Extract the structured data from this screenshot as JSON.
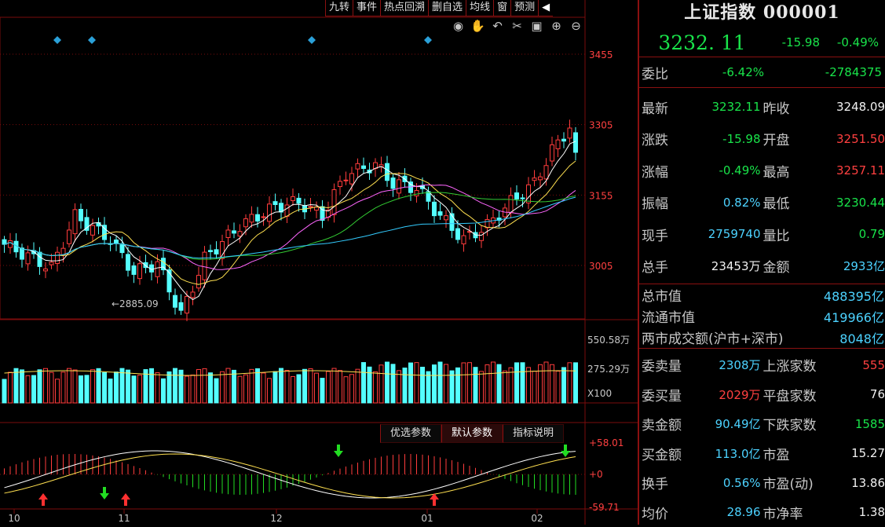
{
  "toolbar": [
    "九转",
    "事件",
    "热点回溯",
    "删自选",
    "均线",
    "窗",
    "预测"
  ],
  "toolbar_icons": [
    "eye-icon",
    "hand-icon",
    "undo-icon",
    "scissors-icon",
    "lock-icon",
    "zoom-in-icon",
    "zoom-out-icon"
  ],
  "indicator_tabs": [
    "优选参数",
    "默认参数",
    "指标说明"
  ],
  "price_axis": {
    "labels": [
      "3455",
      "3305",
      "3155",
      "3005"
    ],
    "values": [
      3455,
      3305,
      3155,
      3005
    ]
  },
  "low_marker": "2885.09",
  "volume_axis": {
    "labels": [
      "550.58万",
      "275.29万",
      "X100"
    ]
  },
  "macd_axis": {
    "labels": [
      "+58.01",
      "+0",
      "-59.71"
    ]
  },
  "months": [
    "10",
    "11",
    "12",
    "01",
    "02"
  ],
  "quote": {
    "title": "上证指数 000001",
    "price": "3232. 11",
    "change": "-15.98",
    "change_pct": "-0.49%",
    "weibi": {
      "label": "委比",
      "pct": "-6.42%",
      "value": "-2784375"
    },
    "rows": [
      {
        "l1": "最新",
        "v1": "3232.11",
        "c1": "g",
        "l2": "昨收",
        "v2": "3248.09",
        "c2": "w"
      },
      {
        "l1": "涨跌",
        "v1": "-15.98",
        "c1": "g",
        "l2": "开盘",
        "v2": "3251.50",
        "c2": "r"
      },
      {
        "l1": "涨幅",
        "v1": "-0.49%",
        "c1": "g",
        "l2": "最高",
        "v2": "3257.11",
        "c2": "r"
      },
      {
        "l1": "振幅",
        "v1": "0.82%",
        "c1": "c",
        "l2": "最低",
        "v2": "3230.44",
        "c2": "g"
      },
      {
        "l1": "现手",
        "v1": "2759740",
        "c1": "c",
        "l2": "量比",
        "v2": "0.79",
        "c2": "g"
      },
      {
        "l1": "总手",
        "v1": "23453万",
        "c1": "w",
        "l2": "金额",
        "v2": "2933亿",
        "c2": "c"
      }
    ],
    "market": [
      {
        "l": "总市值",
        "v": "488395亿"
      },
      {
        "l": "流通市值",
        "v": "419966亿"
      },
      {
        "l": "两市成交额(沪市+深市)",
        "v": "8048亿"
      }
    ],
    "rows2": [
      {
        "l1": "委卖量",
        "v1": "2308万",
        "c1": "c",
        "l2": "上涨家数",
        "v2": "555",
        "c2": "r"
      },
      {
        "l1": "委买量",
        "v1": "2029万",
        "c1": "r",
        "l2": "平盘家数",
        "v2": "76",
        "c2": "w"
      },
      {
        "l1": "卖金额",
        "v1": "90.49亿",
        "c1": "c",
        "l2": "下跌家数",
        "v2": "1585",
        "c2": "g"
      },
      {
        "l1": "买金额",
        "v1": "113.0亿",
        "c1": "c",
        "l2": "市盈",
        "v2": "15.27",
        "c2": "w"
      },
      {
        "l1": "换手",
        "v1": "0.56%",
        "c1": "c",
        "l2": "市盈(动)",
        "v2": "13.86",
        "c2": "w"
      },
      {
        "l1": "均价",
        "v1": "28.96",
        "c1": "c",
        "l2": "市净率",
        "v2": "1.38",
        "c2": "w"
      }
    ]
  },
  "colors": {
    "up": "#ff3c3c",
    "down": "#54ffff",
    "grid": "#7a0c0c",
    "ma5": "#ffffff",
    "ma10": "#ffe050",
    "ma20": "#ff66ff",
    "ma30": "#33cc33",
    "ma60": "#33ccff"
  }
}
